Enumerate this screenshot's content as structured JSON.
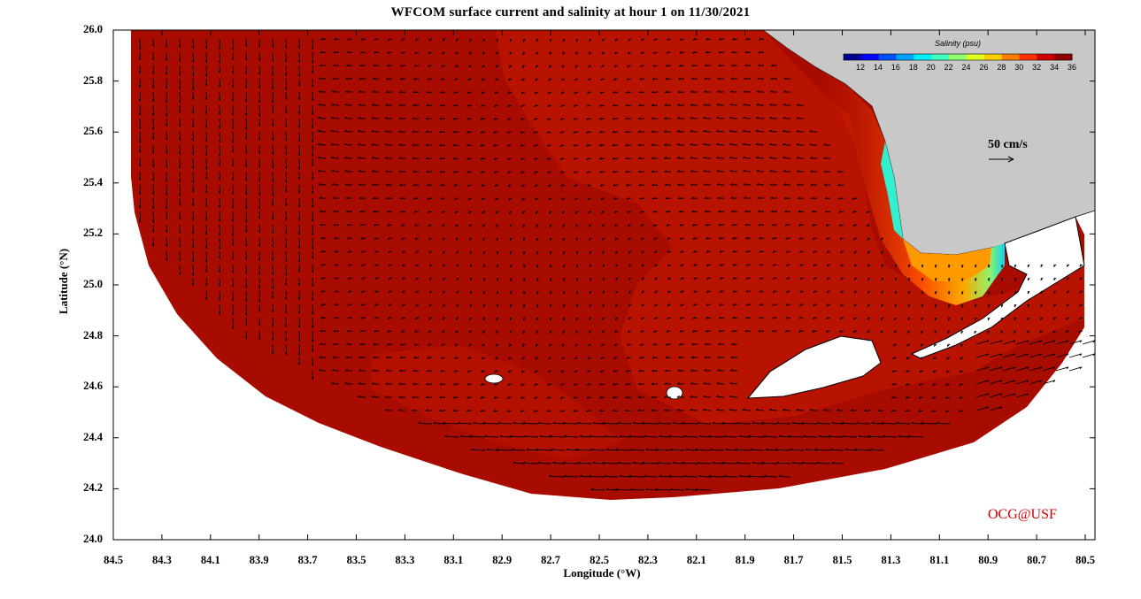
{
  "title": "WFCOM surface current and salinity at hour 1 on 11/30/2021",
  "xlabel": "Longitude (°W)",
  "ylabel": "Latitude (°N)",
  "xticks": [
    "84.5",
    "84.3",
    "84.1",
    "83.9",
    "83.7",
    "83.5",
    "83.3",
    "83.1",
    "82.9",
    "82.7",
    "82.5",
    "82.3",
    "82.1",
    "81.9",
    "81.7",
    "81.5",
    "81.3",
    "81.1",
    "80.9",
    "80.7",
    "80.5"
  ],
  "yticks": [
    "26.0",
    "25.8",
    "25.6",
    "25.4",
    "25.2",
    "25.0",
    "24.8",
    "24.6",
    "24.4",
    "24.2",
    "24.0"
  ],
  "colorbar": {
    "title": "Salinity (psu)",
    "ticks": [
      "12",
      "14",
      "16",
      "18",
      "20",
      "22",
      "24",
      "26",
      "28",
      "30",
      "32",
      "34",
      "36"
    ],
    "colors": [
      "#00008f",
      "#0000ff",
      "#0050ff",
      "#00a0ff",
      "#00f0ff",
      "#40ffbf",
      "#90ff70",
      "#e0ff20",
      "#ffd000",
      "#ff8000",
      "#ff3000",
      "#d00000",
      "#8f0000"
    ]
  },
  "scale_arrow_label": "50 cm/s",
  "credit": "OCG@USF",
  "colors": {
    "land": "#c8c8c8",
    "ocean_salty": "#a80c00",
    "ocean_mid": "#c01500",
    "credit": "#d40000"
  }
}
